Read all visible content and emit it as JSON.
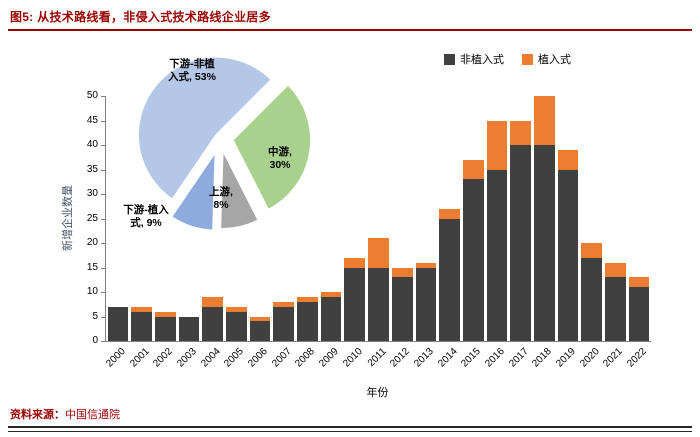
{
  "header": {
    "title": "图5: 从技术路线看，非侵入式技术路线企业居多"
  },
  "footer": {
    "source_label": "资料来源：",
    "source_value": "中国信通院"
  },
  "chart_data": [
    {
      "type": "bar",
      "stacked": true,
      "categories": [
        "2000",
        "2001",
        "2002",
        "2003",
        "2004",
        "2005",
        "2006",
        "2007",
        "2008",
        "2009",
        "2010",
        "2011",
        "2012",
        "2013",
        "2014",
        "2015",
        "2016",
        "2017",
        "2018",
        "2019",
        "2020",
        "2021",
        "2022"
      ],
      "series": [
        {
          "name": "非植入式",
          "color": "#404040",
          "values": [
            7,
            6,
            5,
            5,
            7,
            6,
            4,
            7,
            8,
            9,
            15,
            15,
            13,
            15,
            25,
            33,
            35,
            40,
            40,
            35,
            17,
            13,
            11
          ]
        },
        {
          "name": "植入式",
          "color": "#ED7D31",
          "values": [
            0,
            1,
            1,
            0,
            2,
            1,
            1,
            1,
            1,
            1,
            2,
            6,
            2,
            1,
            2,
            4,
            10,
            5,
            10,
            4,
            3,
            3,
            2
          ]
        }
      ],
      "xlabel": "年份",
      "ylabel": "新增企业数量",
      "ylim": [
        0,
        50
      ],
      "ytick_step": 5,
      "grid": false,
      "legend_position": "top-right"
    },
    {
      "type": "pie",
      "slices": [
        {
          "label": "下游-非植入式",
          "pct": 53,
          "color": "#B4C7E7",
          "display": "下游-非植入式, 53%"
        },
        {
          "label": "中游",
          "pct": 30,
          "color": "#A9D18E",
          "display": "中游, 30%"
        },
        {
          "label": "上游",
          "pct": 8,
          "color": "#A6A6A6",
          "display": "上游, 8%"
        },
        {
          "label": "下游-植入式",
          "pct": 9,
          "color": "#8FAADC",
          "display": "下游-植入式, 9%"
        }
      ]
    }
  ]
}
